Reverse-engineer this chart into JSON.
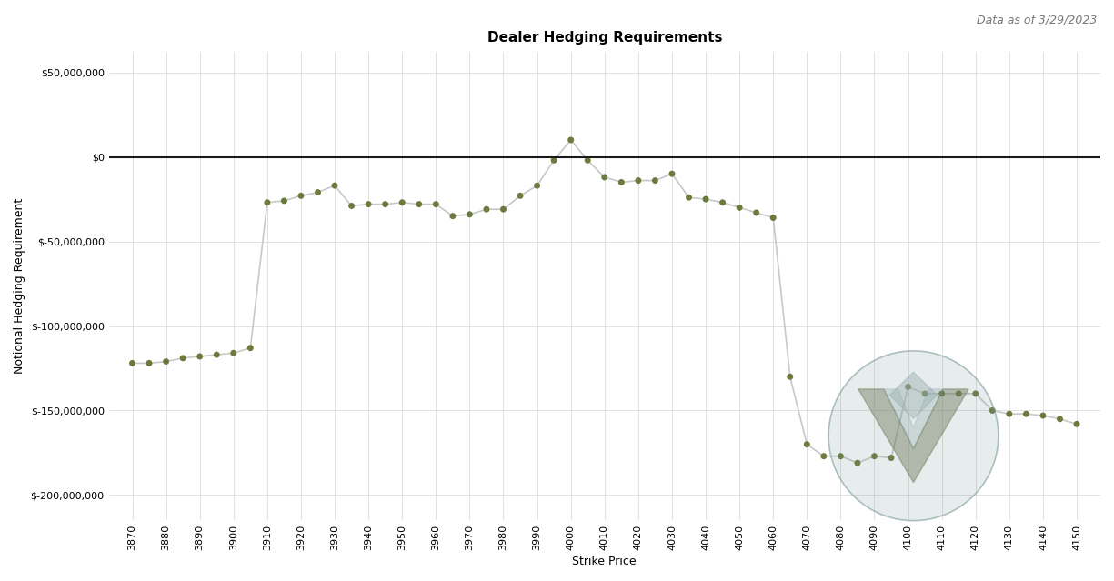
{
  "title": "Dealer Hedging Requirements",
  "subtitle": "Data as of 3/29/2023",
  "xlabel": "Strike Price",
  "ylabel": "Notional Hedging Requirement",
  "xlim": [
    3863,
    4157
  ],
  "ylim": [
    -215000000,
    62000000
  ],
  "yticks": [
    50000000,
    0,
    -50000000,
    -100000000,
    -150000000,
    -200000000
  ],
  "zero_line_y": 0,
  "line_color": "#c8c8c8",
  "marker_color": "#6b7a3d",
  "marker_size": 5,
  "bg_color": "#ffffff",
  "grid_color": "#d5d5d5",
  "title_fontsize": 11,
  "subtitle_fontsize": 9,
  "axis_label_fontsize": 9,
  "tick_label_fontsize": 8,
  "strikes": [
    3870,
    3875,
    3880,
    3885,
    3890,
    3895,
    3900,
    3905,
    3910,
    3915,
    3920,
    3925,
    3930,
    3935,
    3940,
    3945,
    3950,
    3955,
    3960,
    3965,
    3970,
    3975,
    3980,
    3985,
    3990,
    3995,
    4000,
    4005,
    4010,
    4015,
    4020,
    4025,
    4030,
    4035,
    4040,
    4045,
    4050,
    4055,
    4060,
    4065,
    4070,
    4075,
    4080,
    4085,
    4090,
    4095,
    4100,
    4105,
    4110,
    4115,
    4120,
    4125,
    4130,
    4135,
    4140,
    4145,
    4150
  ],
  "values": [
    -122000000,
    -122000000,
    -121000000,
    -119000000,
    -118000000,
    -117000000,
    -116000000,
    -113000000,
    -27000000,
    -26000000,
    -23000000,
    -21000000,
    -17000000,
    -29000000,
    -28000000,
    -28000000,
    -27000000,
    -28000000,
    -28000000,
    -35000000,
    -34000000,
    -31000000,
    -31000000,
    -23000000,
    -17000000,
    -2000000,
    10000000,
    -2000000,
    -12000000,
    -15000000,
    -14000000,
    -14000000,
    -10000000,
    -24000000,
    -25000000,
    -27000000,
    -30000000,
    -33000000,
    -36000000,
    -130000000,
    -170000000,
    -177000000,
    -177000000,
    -181000000,
    -177000000,
    -178000000,
    -136000000,
    -140000000,
    -140000000,
    -140000000,
    -140000000,
    -150000000,
    -152000000,
    -152000000,
    -153000000,
    -155000000,
    -158000000
  ],
  "logo_circle_color": "#7a9a9a",
  "logo_v_color": "#6b7a5a",
  "logo_diamond_color": "#9ab0b0"
}
